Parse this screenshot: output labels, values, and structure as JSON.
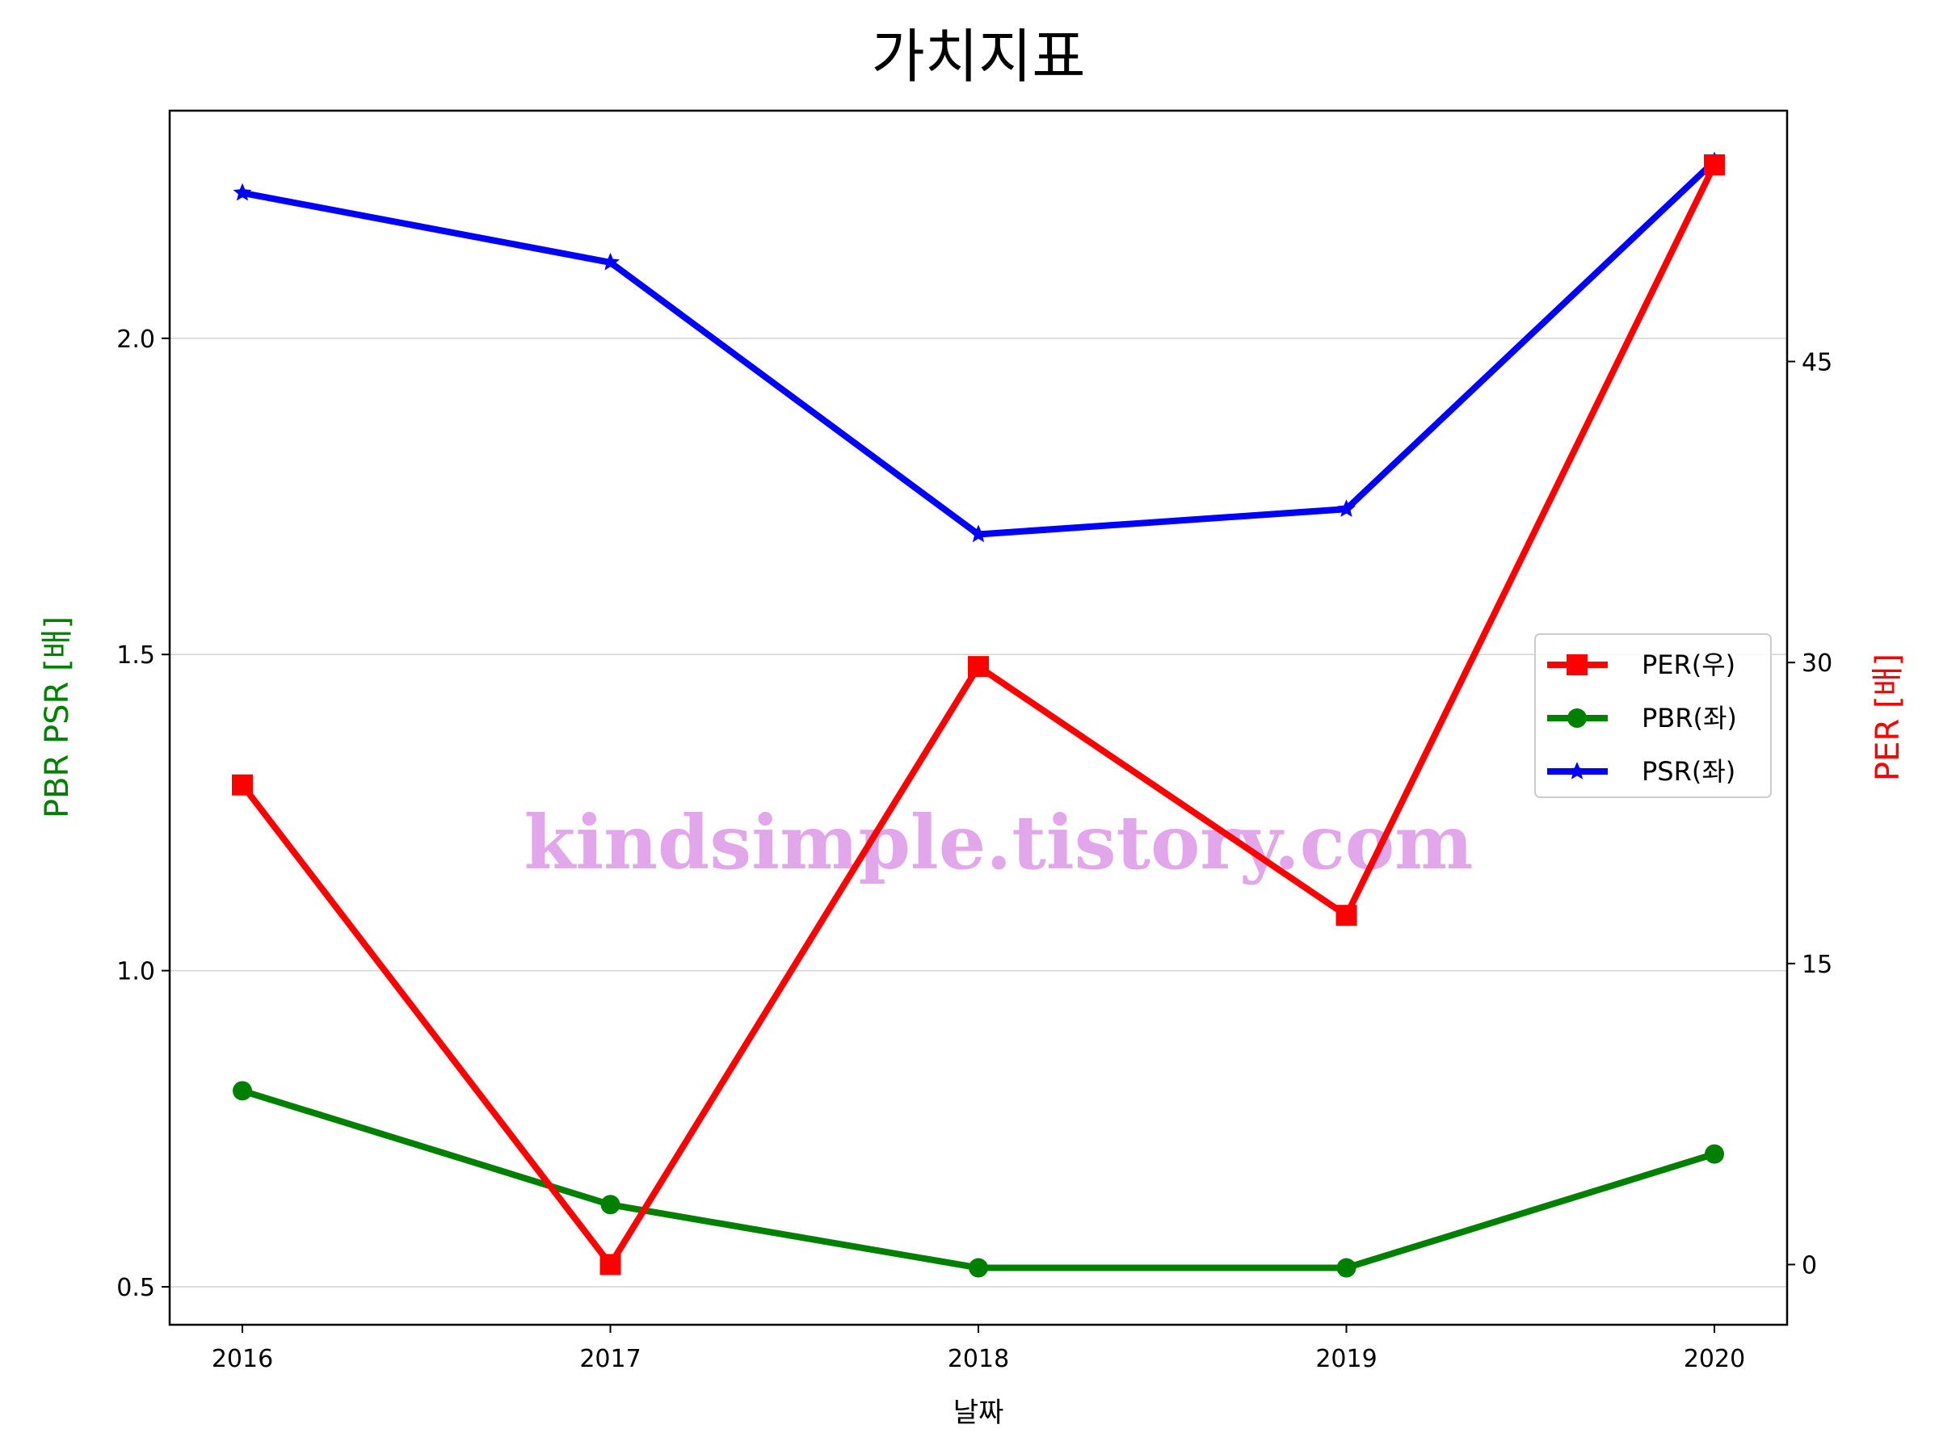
{
  "chart_data": {
    "type": "line",
    "title": "가치지표",
    "xlabel": "날짜",
    "ylabel_left": "PBR PSR [배]",
    "ylabel_right": "PER [배]",
    "categories": [
      "2016",
      "2017",
      "2018",
      "2019",
      "2020"
    ],
    "ylim_left": [
      0.44,
      2.36
    ],
    "yticks_left": [
      "0.5",
      "1.0",
      "1.5",
      "2.0"
    ],
    "ylim_right": [
      -3.0,
      57.5
    ],
    "yticks_right": [
      "0",
      "15",
      "30",
      "45"
    ],
    "grid": "horizontal (left axis)",
    "legend_position": "center-right",
    "series": [
      {
        "name": "PER(우)",
        "axis": "right",
        "marker": "square",
        "color": "#ff0000",
        "values": [
          23.9,
          0.0,
          29.8,
          17.4,
          54.8
        ]
      },
      {
        "name": "PBR(좌)",
        "axis": "left",
        "marker": "circle",
        "color": "#008000",
        "values": [
          0.81,
          0.63,
          0.53,
          0.53,
          0.71
        ]
      },
      {
        "name": "PSR(좌)",
        "axis": "left",
        "marker": "star",
        "color": "#0000ff",
        "values": [
          2.23,
          2.12,
          1.69,
          1.73,
          2.28
        ]
      }
    ],
    "annotation": "kindsimple.tistory.com"
  }
}
